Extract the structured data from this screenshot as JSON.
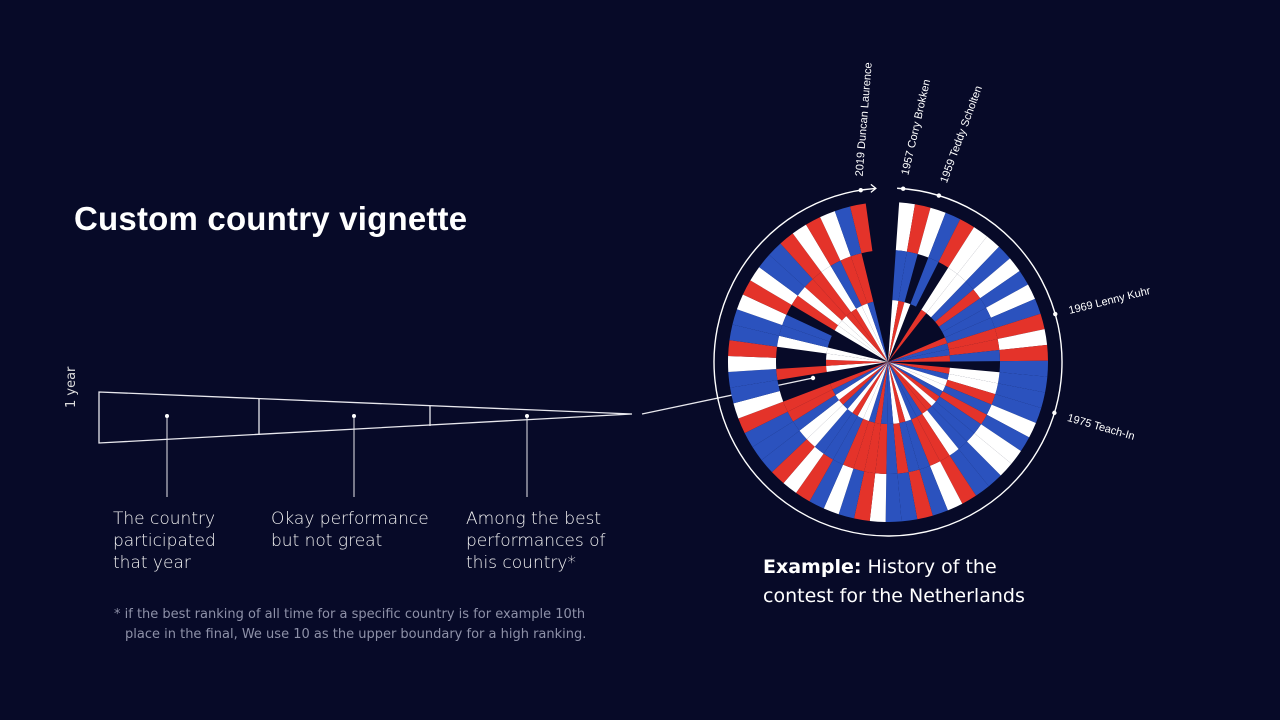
{
  "title": "Custom country vignette",
  "legend": {
    "unit_label": "1 year",
    "captions": [
      [
        "The country",
        "participated",
        "that year"
      ],
      [
        "Okay performance",
        "but not great"
      ],
      [
        "Among the best",
        "performances of",
        "this country*"
      ]
    ],
    "footnote": [
      "* if the best ranking of all time for a specific country is for example 10th",
      "place in the final, We use 10 as the upper boundary for a high ranking."
    ]
  },
  "example": {
    "bold": "Example:",
    "text": " History of the",
    "line2": "contest for the Netherlands"
  },
  "colors": {
    "background": "#070a28",
    "red": "#e4332a",
    "white": "#ffffff",
    "blue": "#2b52be"
  },
  "annotations": [
    {
      "label": "2019 Duncan Laurence",
      "angle": -9
    },
    {
      "label": "1957 Corry Brokken",
      "angle": 5
    },
    {
      "label": "1959 Teddy Scholten",
      "angle": 17
    },
    {
      "label": "1969 Lenny Kuhr",
      "angle": 74
    },
    {
      "label": "1975 Teach-In",
      "angle": 107
    }
  ],
  "wedges": [
    "wbw",
    "rbr",
    "w-w",
    "bb-",
    "r--",
    "wwr",
    "ww-",
    "bb-",
    "wr-",
    "bb-",
    "wb-",
    "bbr",
    "rrb",
    "wrb",
    "rbr",
    "b--",
    "bwr",
    "bwb",
    "brw",
    "wbw",
    "brb",
    "wbr",
    "wbw",
    "bbr",
    "bwr",
    "rrb",
    "wrb",
    "bbw",
    "rbr",
    "brw",
    "bbb",
    "wrb",
    "rrr",
    "brb",
    "wrw",
    "bbw",
    "rbr",
    "wbw",
    "rwb",
    "bwr",
    "bbw",
    "brb",
    "rrr",
    "w--",
    "b--",
    "brw",
    "w-r",
    "r-w",
    "bww",
    "bb-",
    "wb-",
    "r--",
    "wrw",
    "bww",
    "brw",
    "rrr",
    "wwr",
    "rbw",
    "wrw",
    "brb",
    "r--"
  ]
}
